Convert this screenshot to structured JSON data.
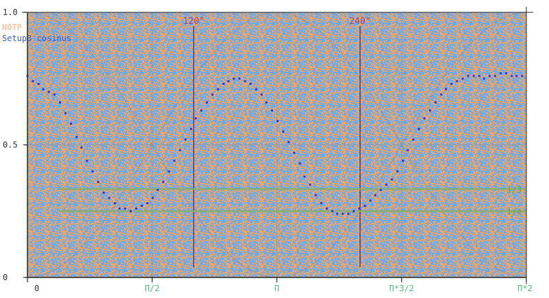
{
  "colors": {
    "plot_bg_a": "#f2a55c",
    "plot_bg_b": "#6aaaf0",
    "grid": "#9a9a9a",
    "axis": "#222222",
    "points": "#3a2ee0",
    "guide_lines": "#3b2a8a",
    "guide_labels": "#b0456a",
    "h_lines": "#8cae62",
    "h_labels": "#7aa24c",
    "pi_labels": "#4cbf7a",
    "legend_notp": "#f6c8a0",
    "legend_setup": "#3a5fd0"
  },
  "chart_data": {
    "type": "scatter",
    "x_tick_labels": [
      "0",
      "Π/2",
      "Π",
      "Π*3/2",
      "Π*2"
    ],
    "y_tick_labels": [
      "0",
      "0.5",
      "1.0"
    ],
    "xlim": [
      0,
      6.2832
    ],
    "ylim": [
      0,
      1.0
    ],
    "grid": true,
    "legend_placement": "top-left",
    "legend": [
      "NOTP",
      "Setup3 cosinus"
    ],
    "vertical_markers": [
      {
        "x": 2.0944,
        "label": "120°"
      },
      {
        "x": 4.1888,
        "label": "240°"
      }
    ],
    "horizontal_markers": [
      {
        "y": 0.3333,
        "label": "1/3"
      },
      {
        "y": 0.25,
        "label": "1/4"
      }
    ],
    "series": [
      {
        "name": "Setup3 cosinus",
        "x": [
          0.0,
          0.07,
          0.14,
          0.2,
          0.27,
          0.34,
          0.41,
          0.48,
          0.55,
          0.62,
          0.68,
          0.75,
          0.82,
          0.89,
          0.96,
          1.03,
          1.1,
          1.16,
          1.23,
          1.3,
          1.37,
          1.44,
          1.51,
          1.58,
          1.64,
          1.71,
          1.78,
          1.85,
          1.92,
          1.99,
          2.06,
          2.12,
          2.19,
          2.26,
          2.33,
          2.4,
          2.47,
          2.53,
          2.6,
          2.67,
          2.74,
          2.81,
          2.88,
          2.95,
          3.01,
          3.08,
          3.15,
          3.22,
          3.29,
          3.36,
          3.43,
          3.49,
          3.56,
          3.63,
          3.7,
          3.77,
          3.84,
          3.9,
          3.97,
          4.04,
          4.11,
          4.18,
          4.25,
          4.32,
          4.38,
          4.45,
          4.52,
          4.59,
          4.66,
          4.73,
          4.79,
          4.86,
          4.93,
          5.0,
          5.07,
          5.14,
          5.21,
          5.27,
          5.34,
          5.41,
          5.48,
          5.55,
          5.62,
          5.69,
          5.75,
          5.82,
          5.89,
          5.96,
          6.03,
          6.1,
          6.16,
          6.23
        ],
        "y": [
          0.76,
          0.74,
          0.73,
          0.71,
          0.7,
          0.69,
          0.66,
          0.62,
          0.58,
          0.53,
          0.49,
          0.44,
          0.4,
          0.36,
          0.32,
          0.3,
          0.28,
          0.26,
          0.26,
          0.25,
          0.26,
          0.27,
          0.28,
          0.3,
          0.33,
          0.36,
          0.4,
          0.44,
          0.48,
          0.52,
          0.56,
          0.6,
          0.63,
          0.66,
          0.69,
          0.71,
          0.73,
          0.74,
          0.75,
          0.75,
          0.74,
          0.73,
          0.71,
          0.69,
          0.66,
          0.63,
          0.59,
          0.55,
          0.51,
          0.47,
          0.43,
          0.38,
          0.35,
          0.31,
          0.28,
          0.26,
          0.25,
          0.24,
          0.24,
          0.24,
          0.25,
          0.26,
          0.27,
          0.29,
          0.31,
          0.33,
          0.35,
          0.37,
          0.4,
          0.44,
          0.48,
          0.52,
          0.56,
          0.6,
          0.63,
          0.66,
          0.69,
          0.71,
          0.73,
          0.74,
          0.75,
          0.76,
          0.76,
          0.76,
          0.75,
          0.76,
          0.76,
          0.77,
          0.77,
          0.76,
          0.76,
          0.76
        ]
      }
    ]
  }
}
